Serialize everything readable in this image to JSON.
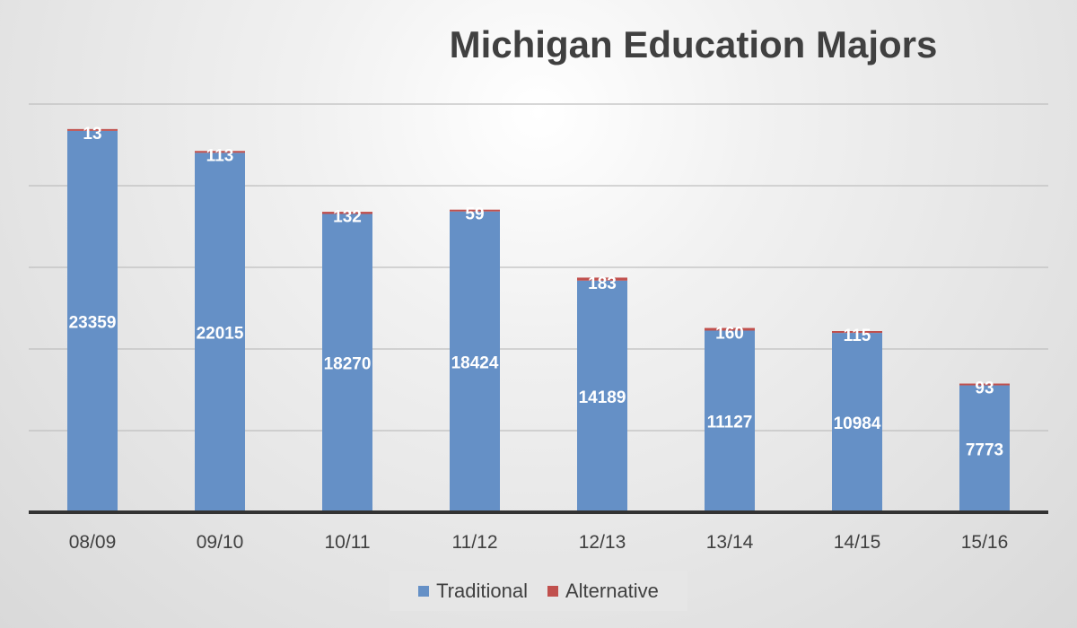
{
  "colors": {
    "traditional": "#6590c6",
    "alternative": "#c0504d",
    "label": "#ffffff",
    "axis_text": "#404040",
    "grid": "#bfbfbf",
    "baseline": "#333333"
  },
  "chart_data": {
    "type": "bar",
    "stacked": true,
    "title": "Michigan Education Majors",
    "xlabel": "",
    "ylabel": "",
    "categories": [
      "08/09",
      "09/10",
      "10/11",
      "11/12",
      "12/13",
      "13/14",
      "14/15",
      "15/16"
    ],
    "series": [
      {
        "name": "Traditional",
        "values": [
          23359,
          22015,
          18270,
          18424,
          14189,
          11127,
          10984,
          7773
        ]
      },
      {
        "name": "Alternative",
        "values": [
          13,
          113,
          132,
          59,
          183,
          160,
          115,
          93
        ]
      }
    ],
    "ylim": [
      0,
      25000
    ],
    "y_gridlines": [
      5000,
      10000,
      15000,
      20000,
      25000
    ],
    "y_tick_labels_shown": false,
    "grid": true,
    "legend_position": "bottom"
  }
}
